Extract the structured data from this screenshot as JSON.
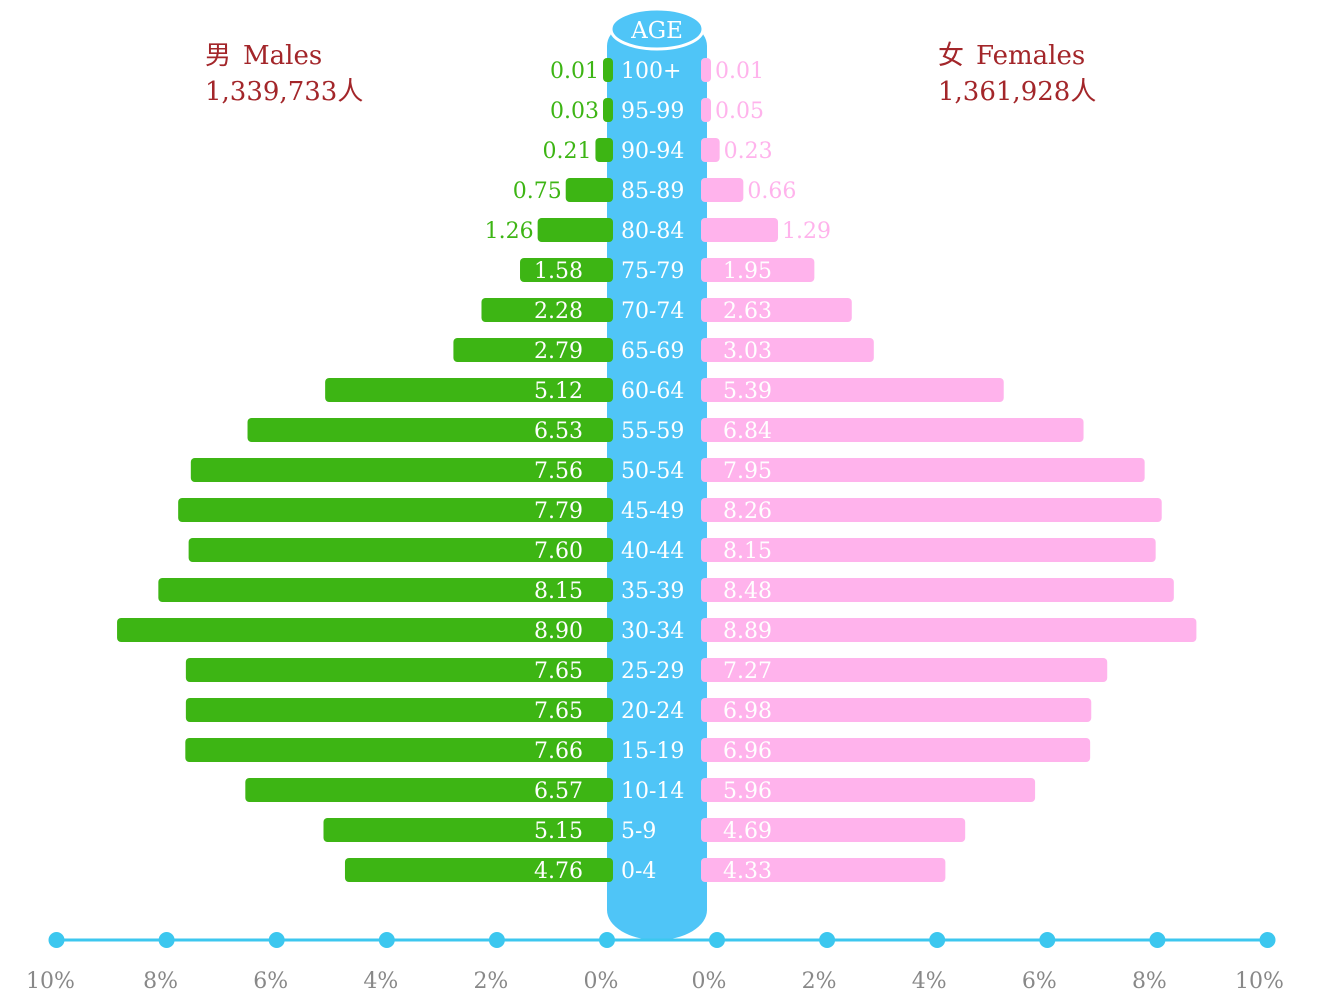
{
  "legend": {
    "male": {
      "symbol": "男",
      "label": "Males",
      "total": "1,339,733人"
    },
    "female": {
      "symbol": "女",
      "label": "Females",
      "total": "1,361,928人"
    }
  },
  "colors": {
    "male_bar": "#3db514",
    "female_bar": "#ffb3ec",
    "age_column": "#4fc5f7",
    "axis": "#3cc7ef",
    "tick_label": "#888888",
    "legend_text": "#a3262a"
  },
  "chart_data": {
    "type": "bar",
    "orientation": "horizontal",
    "center_label": "AGE",
    "categories": [
      "100+",
      "95-99",
      "90-94",
      "85-89",
      "80-84",
      "75-79",
      "70-74",
      "65-69",
      "60-64",
      "55-59",
      "50-54",
      "45-49",
      "40-44",
      "35-39",
      "30-34",
      "25-29",
      "20-24",
      "15-19",
      "10-14",
      "5-9",
      "0-4"
    ],
    "series": [
      {
        "name": "Males",
        "side": "left",
        "values": [
          0.01,
          0.03,
          0.21,
          0.75,
          1.26,
          1.58,
          2.28,
          2.79,
          5.12,
          6.53,
          7.56,
          7.79,
          7.6,
          8.15,
          8.9,
          7.65,
          7.65,
          7.66,
          6.57,
          5.15,
          4.76
        ],
        "labels": [
          "0.01",
          "0.03",
          "0.21",
          "0.75",
          "1.26",
          "1.58",
          "2.28",
          "2.79",
          "5.12",
          "6.53",
          "7.56",
          "7.79",
          "7.60",
          "8.15",
          "8.90",
          "7.65",
          "7.65",
          "7.66",
          "6.57",
          "5.15",
          "4.76"
        ]
      },
      {
        "name": "Females",
        "side": "right",
        "values": [
          0.01,
          0.05,
          0.23,
          0.66,
          1.29,
          1.95,
          2.63,
          3.03,
          5.39,
          6.84,
          7.95,
          8.26,
          8.15,
          8.48,
          8.89,
          7.27,
          6.98,
          6.96,
          5.96,
          4.69,
          4.33
        ],
        "labels": [
          "0.01",
          "0.05",
          "0.23",
          "0.66",
          "1.29",
          "1.95",
          "2.63",
          "3.03",
          "5.39",
          "6.84",
          "7.95",
          "8.26",
          "8.15",
          "8.48",
          "8.89",
          "7.27",
          "6.98",
          "6.96",
          "5.96",
          "4.69",
          "4.33"
        ]
      }
    ],
    "x_ticks_left": [
      "10%",
      "8%",
      "6%",
      "4%",
      "2%",
      "0%"
    ],
    "x_ticks_right": [
      "0%",
      "2%",
      "4%",
      "6%",
      "8%",
      "10%"
    ],
    "xlim": [
      0,
      10
    ],
    "grid": false
  }
}
